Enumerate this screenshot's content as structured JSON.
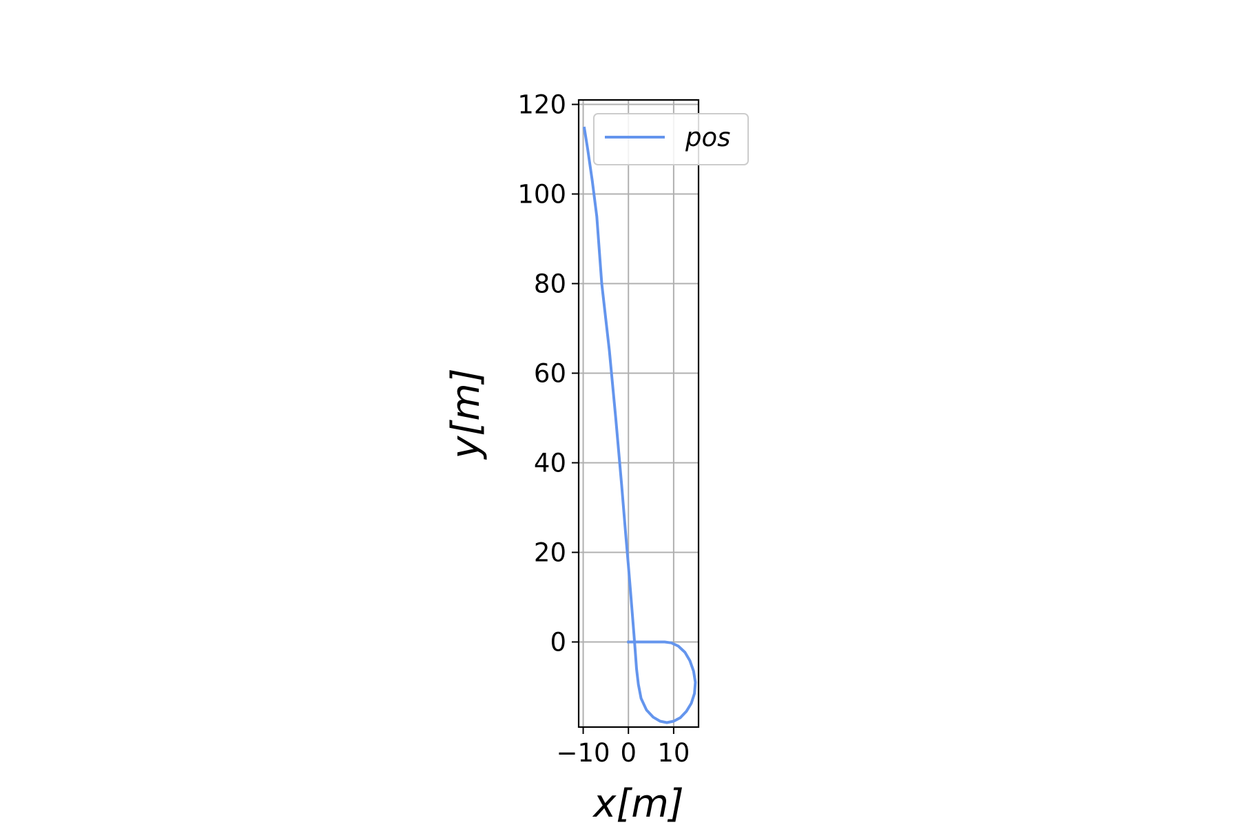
{
  "chart_data": {
    "type": "line",
    "xlabel": "x[m]",
    "ylabel": "y[m]",
    "xlim": [
      -11,
      15.5
    ],
    "ylim": [
      -19,
      121
    ],
    "xticks": [
      -10,
      0,
      10
    ],
    "xtick_labels": [
      "−10",
      "0",
      "10"
    ],
    "yticks": [
      0,
      20,
      40,
      60,
      80,
      100,
      120
    ],
    "ytick_labels": [
      "0",
      "20",
      "40",
      "60",
      "80",
      "100",
      "120"
    ],
    "grid": true,
    "legend_position": "top-right",
    "series": [
      {
        "name": "pos",
        "color": "#6495ED",
        "x": [
          -0.3,
          1.5,
          4.0,
          6.5,
          8.0,
          9.5,
          11.0,
          12.5,
          13.6,
          14.4,
          14.8,
          14.6,
          13.9,
          12.8,
          11.5,
          10.0,
          8.5,
          7.0,
          5.5,
          4.0,
          2.8,
          2.2,
          1.8,
          1.5,
          1.2,
          0.8,
          0.4,
          0.0,
          -0.6,
          -1.5,
          -2.8,
          -4.2,
          -5.0,
          -5.9,
          -7.0,
          -8.0,
          -9.0,
          -9.8
        ],
        "y": [
          0.0,
          0.0,
          0.0,
          0.0,
          0.0,
          -0.2,
          -0.9,
          -2.3,
          -4.2,
          -6.5,
          -9.0,
          -11.5,
          -13.7,
          -15.5,
          -16.9,
          -17.7,
          -18.0,
          -17.7,
          -16.8,
          -15.2,
          -12.6,
          -9.5,
          -6.0,
          -2.0,
          2.0,
          7.0,
          12.0,
          17.0,
          24.0,
          35.0,
          50.0,
          65.0,
          72.0,
          80.0,
          95.0,
          103.0,
          110.0,
          115.0
        ]
      }
    ]
  }
}
